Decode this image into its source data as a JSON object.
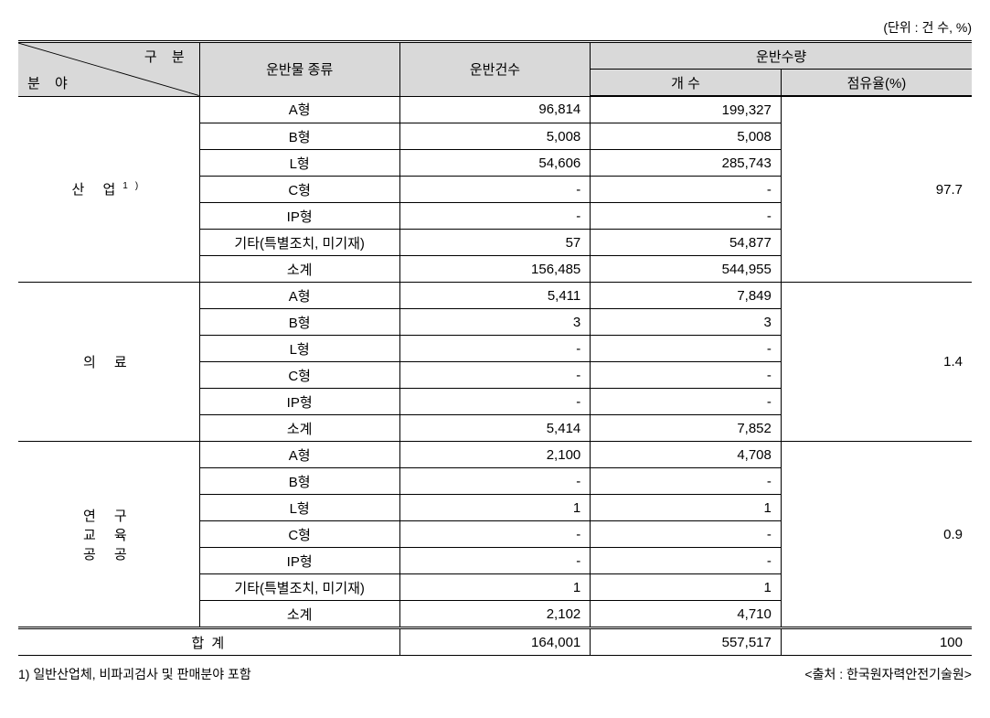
{
  "unit": "(단위 : 건 수, %)",
  "header": {
    "diag_top": "구 분",
    "diag_bottom": "분 야",
    "col2": "운반물 종류",
    "col3": "운반건수",
    "col4_group": "운반수량",
    "col4a": "개 수",
    "col4b": "점유율(%)"
  },
  "sections": [
    {
      "label_html": "산 업",
      "sup": "1)",
      "share": "97.7",
      "rows": [
        {
          "type": "A형",
          "count": "96,814",
          "qty": "199,327"
        },
        {
          "type": "B형",
          "count": "5,008",
          "qty": "5,008"
        },
        {
          "type": "L형",
          "count": "54,606",
          "qty": "285,743"
        },
        {
          "type": "C형",
          "count": "-",
          "qty": "-"
        },
        {
          "type": "IP형",
          "count": "-",
          "qty": "-"
        },
        {
          "type": "기타(특별조치, 미기재)",
          "count": "57",
          "qty": "54,877"
        },
        {
          "type": "소계",
          "count": "156,485",
          "qty": "544,955"
        }
      ]
    },
    {
      "label_html": "의 료",
      "sup": "",
      "share": "1.4",
      "rows": [
        {
          "type": "A형",
          "count": "5,411",
          "qty": "7,849"
        },
        {
          "type": "B형",
          "count": "3",
          "qty": "3"
        },
        {
          "type": "L형",
          "count": "-",
          "qty": "-"
        },
        {
          "type": "C형",
          "count": "-",
          "qty": "-"
        },
        {
          "type": "IP형",
          "count": "-",
          "qty": "-"
        },
        {
          "type": "소계",
          "count": "5,414",
          "qty": "7,852"
        }
      ]
    },
    {
      "label_html": "연 구<br>교 육<br>공 공",
      "sup": "",
      "share": "0.9",
      "rows": [
        {
          "type": "A형",
          "count": "2,100",
          "qty": "4,708"
        },
        {
          "type": "B형",
          "count": "-",
          "qty": "-"
        },
        {
          "type": "L형",
          "count": "1",
          "qty": "1"
        },
        {
          "type": "C형",
          "count": "-",
          "qty": "-"
        },
        {
          "type": "IP형",
          "count": "-",
          "qty": "-"
        },
        {
          "type": "기타(특별조치, 미기재)",
          "count": "1",
          "qty": "1"
        },
        {
          "type": "소계",
          "count": "2,102",
          "qty": "4,710"
        }
      ]
    }
  ],
  "total": {
    "label": "합 계",
    "count": "164,001",
    "qty": "557,517",
    "share": "100"
  },
  "footnote_left": "1) 일반산업체, 비파괴검사 및 판매분야 포함",
  "footnote_right": "<출처 : 한국원자력안전기술원>"
}
